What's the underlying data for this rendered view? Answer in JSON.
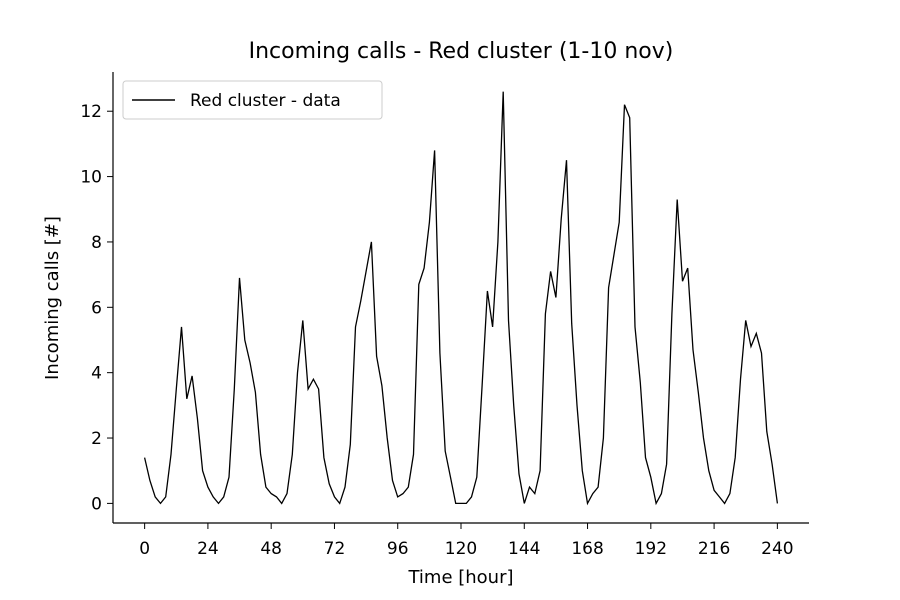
{
  "chart_data": {
    "type": "line",
    "title": "Incoming calls - Red cluster (1-10 nov)",
    "xlabel": "Time [hour]",
    "ylabel": "Incoming calls [#]",
    "xlim": [
      -12,
      252
    ],
    "ylim": [
      -0.6,
      13.2
    ],
    "xticks": [
      0,
      24,
      48,
      72,
      96,
      120,
      144,
      168,
      192,
      216,
      240
    ],
    "yticks": [
      0,
      2,
      4,
      6,
      8,
      10,
      12
    ],
    "grid": false,
    "legend_position": "top-left",
    "legend": [
      "Red cluster - data"
    ],
    "series": [
      {
        "name": "Red cluster - data",
        "color": "#000000",
        "x": [
          0,
          2,
          4,
          6,
          8,
          10,
          12,
          14,
          16,
          18,
          20,
          22,
          24,
          26,
          28,
          30,
          32,
          34,
          36,
          38,
          40,
          42,
          44,
          46,
          48,
          50,
          52,
          54,
          56,
          58,
          60,
          62,
          64,
          66,
          68,
          70,
          72,
          74,
          76,
          78,
          80,
          82,
          84,
          86,
          88,
          90,
          92,
          94,
          96,
          98,
          100,
          102,
          104,
          106,
          108,
          110,
          112,
          114,
          116,
          118,
          120,
          122,
          124,
          126,
          128,
          130,
          132,
          134,
          136,
          138,
          140,
          142,
          144,
          146,
          148,
          150,
          152,
          154,
          156,
          158,
          160,
          162,
          164,
          166,
          168,
          170,
          172,
          174,
          176,
          178,
          180,
          182,
          184,
          186,
          188,
          190,
          192,
          194,
          196,
          198,
          200,
          202,
          204,
          206,
          208,
          210,
          212,
          214,
          216,
          218,
          220,
          222,
          224,
          226,
          228,
          230,
          232,
          234,
          236,
          238,
          240
        ],
        "values": [
          1.4,
          0.7,
          0.2,
          0,
          0.2,
          1.5,
          3.5,
          5.4,
          3.2,
          3.9,
          2.6,
          1,
          0.5,
          0.2,
          0,
          0.2,
          0.8,
          3.5,
          6.9,
          5,
          4.3,
          3.4,
          1.5,
          0.5,
          0.3,
          0.2,
          0,
          0.3,
          1.5,
          4,
          5.6,
          3.5,
          3.8,
          3.5,
          1.4,
          0.6,
          0.2,
          0,
          0.5,
          1.8,
          5.4,
          6.2,
          7.1,
          8,
          4.5,
          3.6,
          2,
          0.7,
          0.2,
          0.3,
          0.5,
          1.5,
          6.7,
          7.2,
          8.6,
          10.8,
          4.6,
          1.6,
          0.8,
          0,
          0,
          0,
          0.2,
          0.8,
          3.6,
          6.5,
          5.4,
          8,
          12.6,
          5.6,
          3,
          0.9,
          0,
          0.5,
          0.3,
          1,
          5.8,
          7.1,
          6.3,
          8.7,
          10.5,
          5.5,
          3,
          1,
          0,
          0.3,
          0.5,
          2,
          6.6,
          7.6,
          8.6,
          12.2,
          11.8,
          5.4,
          3.7,
          1.4,
          0.8,
          0,
          0.3,
          1.2,
          5.8,
          9.3,
          6.8,
          7.2,
          4.7,
          3.4,
          2,
          1,
          0.4,
          0.2,
          0,
          0.3,
          1.4,
          3.8,
          5.6,
          4.8,
          5.2,
          4.6,
          2.2,
          1.2,
          0
        ]
      }
    ]
  }
}
